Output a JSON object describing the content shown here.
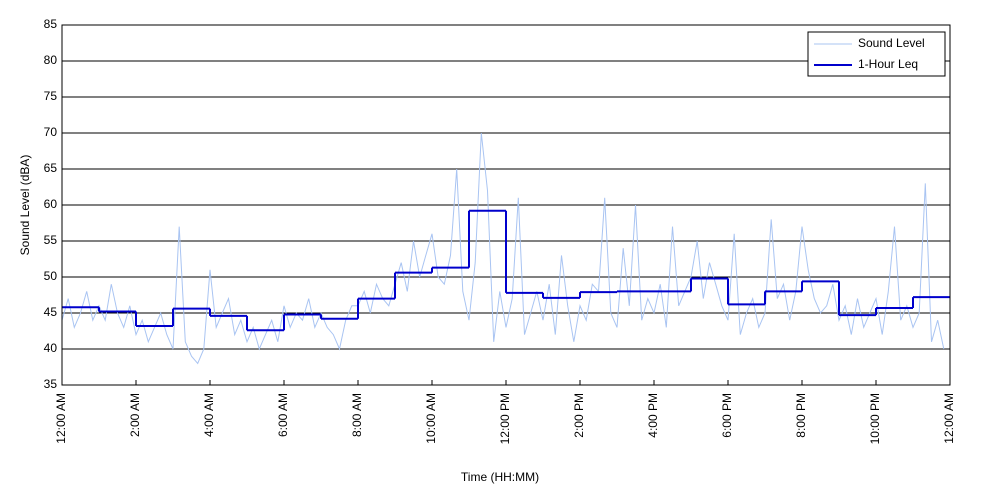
{
  "chart_data": {
    "type": "line",
    "x_label": "Time (HH:MM)",
    "y_label": "Sound Level (dBA)",
    "xlim": [
      0,
      1440
    ],
    "ylim": [
      35,
      85
    ],
    "xticks": [
      {
        "value": 0,
        "label": "12:00 AM"
      },
      {
        "value": 120,
        "label": "2:00 AM"
      },
      {
        "value": 240,
        "label": "4:00 AM"
      },
      {
        "value": 360,
        "label": "6:00 AM"
      },
      {
        "value": 480,
        "label": "8:00 AM"
      },
      {
        "value": 600,
        "label": "10:00 AM"
      },
      {
        "value": 720,
        "label": "12:00 PM"
      },
      {
        "value": 840,
        "label": "2:00 PM"
      },
      {
        "value": 960,
        "label": "4:00 PM"
      },
      {
        "value": 1080,
        "label": "6:00 PM"
      },
      {
        "value": 1200,
        "label": "8:00 PM"
      },
      {
        "value": 1320,
        "label": "10:00 PM"
      },
      {
        "value": 1440,
        "label": "12:00 AM"
      }
    ],
    "yticks": [
      35,
      40,
      45,
      50,
      55,
      60,
      65,
      70,
      75,
      80,
      85
    ],
    "grid": true,
    "legend": "upper right",
    "series": [
      {
        "name": "Sound Level",
        "color": "#a9c4f2",
        "drawstyle": "line",
        "x": [
          0,
          10,
          20,
          30,
          40,
          50,
          60,
          70,
          80,
          90,
          100,
          110,
          120,
          130,
          140,
          150,
          160,
          170,
          180,
          190,
          200,
          210,
          220,
          230,
          240,
          250,
          260,
          270,
          280,
          290,
          300,
          310,
          320,
          330,
          340,
          350,
          360,
          370,
          380,
          390,
          400,
          410,
          420,
          430,
          440,
          450,
          460,
          470,
          480,
          490,
          500,
          510,
          520,
          530,
          540,
          550,
          560,
          570,
          580,
          590,
          600,
          610,
          620,
          630,
          640,
          650,
          660,
          670,
          680,
          690,
          700,
          710,
          720,
          730,
          740,
          750,
          760,
          770,
          780,
          790,
          800,
          810,
          820,
          830,
          840,
          850,
          860,
          870,
          880,
          890,
          900,
          910,
          920,
          930,
          940,
          950,
          960,
          970,
          980,
          990,
          1000,
          1010,
          1020,
          1030,
          1040,
          1050,
          1060,
          1070,
          1080,
          1090,
          1100,
          1110,
          1120,
          1130,
          1140,
          1150,
          1160,
          1170,
          1180,
          1190,
          1200,
          1210,
          1220,
          1230,
          1240,
          1250,
          1260,
          1270,
          1280,
          1290,
          1300,
          1310,
          1320,
          1330,
          1340,
          1350,
          1360,
          1370,
          1380,
          1390,
          1400,
          1410,
          1420,
          1430
        ],
        "values": [
          44,
          47,
          43,
          45,
          48,
          44,
          46,
          44,
          49,
          45,
          43,
          46,
          42,
          44,
          41,
          43,
          45,
          42,
          40,
          57,
          41,
          39,
          38,
          40,
          51,
          43,
          45,
          47,
          42,
          44,
          41,
          43,
          40,
          42,
          44,
          41,
          46,
          43,
          45,
          44,
          47,
          43,
          45,
          43,
          42,
          40,
          44,
          46,
          46,
          48,
          45,
          49,
          47,
          46,
          49,
          52,
          48,
          55,
          50,
          53,
          56,
          50,
          49,
          53,
          65,
          48,
          44,
          52,
          70,
          62,
          41,
          48,
          43,
          47,
          61,
          42,
          45,
          48,
          44,
          49,
          42,
          53,
          46,
          41,
          46,
          44,
          49,
          48,
          61,
          45,
          43,
          54,
          46,
          60,
          44,
          47,
          45,
          49,
          43,
          57,
          46,
          48,
          50,
          55,
          47,
          52,
          49,
          46,
          44,
          56,
          42,
          45,
          47,
          43,
          45,
          58,
          47,
          49,
          44,
          48,
          57,
          51,
          47,
          45,
          46,
          49,
          44,
          46,
          42,
          47,
          43,
          45,
          47,
          42,
          48,
          57,
          44,
          46,
          43,
          45,
          63,
          41,
          44,
          40
        ]
      },
      {
        "name": "1-Hour Leq",
        "color": "#0000cc",
        "drawstyle": "steps-post",
        "x": [
          0,
          60,
          120,
          180,
          240,
          300,
          360,
          420,
          480,
          540,
          600,
          660,
          720,
          780,
          840,
          900,
          960,
          1020,
          1080,
          1140,
          1200,
          1260,
          1320,
          1380
        ],
        "values": [
          45.8,
          45.2,
          43.2,
          45.6,
          44.6,
          42.6,
          44.8,
          44.2,
          47.0,
          50.6,
          51.3,
          59.2,
          47.8,
          47.1,
          47.9,
          48.0,
          48.0,
          49.8,
          46.2,
          48.0,
          49.4,
          44.7,
          45.7,
          47.2
        ]
      }
    ]
  }
}
